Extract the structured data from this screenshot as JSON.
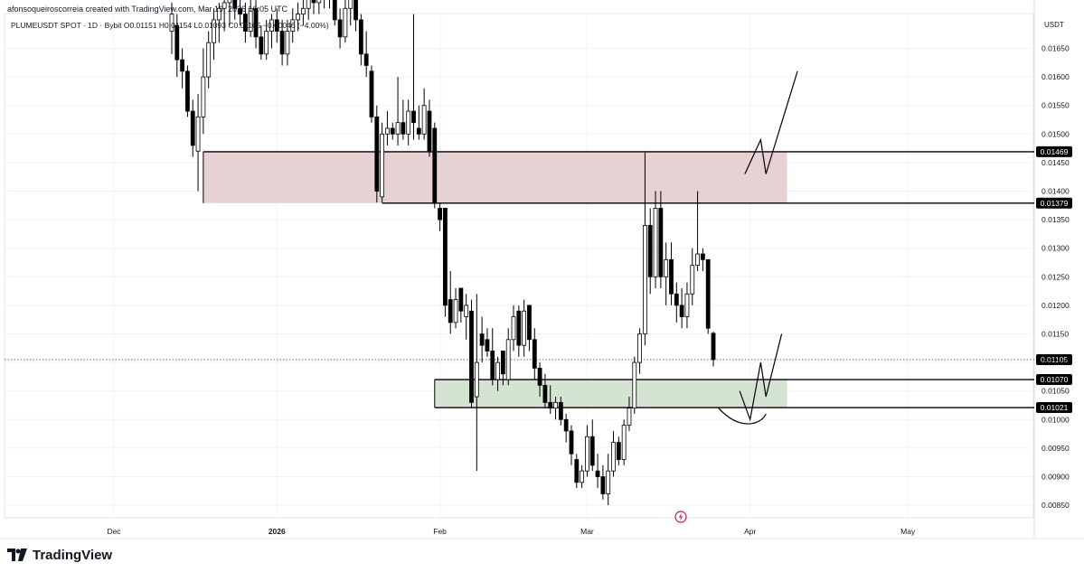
{
  "header": {
    "credit": "afonsoqueiroscorreia created with TradingView.com, Mar 19, 2026 16:05 UTC",
    "symbol_line": "PLUMEUSDT SPOT · 1D · Bybit  O0.01151  H0.01154  L0.01093  C0.01105  −0.00046 (−4.00%)",
    "currency": "USDT"
  },
  "brand": {
    "name": "TradingView",
    "logo_icon": "tradingview-logo-icon"
  },
  "colors": {
    "bull_body": "#ffffff",
    "bear_body": "#000000",
    "candle_outline": "#000000",
    "resistance_zone": "#e6d1d3",
    "support_zone": "#d4e3d2",
    "price_label_bg": "#000000",
    "grid": "#f0f3fa"
  },
  "chart_data": {
    "type": "candlestick",
    "title": "PLUMEUSDT SPOT · 1D · Bybit",
    "ylabel": "USDT",
    "ylim": [
      0.0082,
      0.017
    ],
    "y_ticks": [
      "0.01650",
      "0.01600",
      "0.01550",
      "0.01500",
      "0.01450",
      "0.01400",
      "0.01350",
      "0.01300",
      "0.01250",
      "0.01200",
      "0.01150",
      "0.01100",
      "0.01050",
      "0.01000",
      "0.00950",
      "0.00900",
      "0.00850"
    ],
    "x_ticks": [
      {
        "label": "Dec",
        "bold": false,
        "date": "2025-12-01"
      },
      {
        "label": "2026",
        "bold": true,
        "date": "2026-01-01"
      },
      {
        "label": "Feb",
        "bold": false,
        "date": "2026-02-01"
      },
      {
        "label": "Mar",
        "bold": false,
        "date": "2026-03-01"
      },
      {
        "label": "Apr",
        "bold": false,
        "date": "2026-04-01"
      },
      {
        "label": "May",
        "bold": false,
        "date": "2026-05-01"
      }
    ],
    "last_price": {
      "value": 0.01105,
      "label": "0.01105"
    },
    "levels": [
      {
        "value": 0.01469,
        "label": "0.01469"
      },
      {
        "value": 0.01379,
        "label": "0.01379"
      },
      {
        "value": 0.0107,
        "label": "0.01070"
      },
      {
        "value": 0.01021,
        "label": "0.01021"
      }
    ],
    "zones": [
      {
        "name": "resistance",
        "from_date": "2025-12-18",
        "to_date": "2026-04-08",
        "low": 0.01379,
        "high": 0.01469,
        "color": "#e6d1d3"
      },
      {
        "name": "support",
        "from_date": "2026-01-31",
        "to_date": "2026-04-08",
        "low": 0.01021,
        "high": 0.0107,
        "color": "#d4e3d2"
      }
    ],
    "candles": [
      {
        "date": "2025-12-12",
        "o": 0.0168,
        "h": 0.0173,
        "l": 0.0164,
        "c": 0.0171
      },
      {
        "date": "2025-12-13",
        "o": 0.0169,
        "h": 0.0171,
        "l": 0.016,
        "c": 0.0163
      },
      {
        "date": "2025-12-14",
        "o": 0.0163,
        "h": 0.0165,
        "l": 0.0158,
        "c": 0.0161
      },
      {
        "date": "2025-12-15",
        "o": 0.0161,
        "h": 0.0162,
        "l": 0.0153,
        "c": 0.0154
      },
      {
        "date": "2025-12-16",
        "o": 0.0154,
        "h": 0.0156,
        "l": 0.0146,
        "c": 0.0148
      },
      {
        "date": "2025-12-17",
        "o": 0.0147,
        "h": 0.0157,
        "l": 0.014,
        "c": 0.0153
      },
      {
        "date": "2025-12-18",
        "o": 0.0153,
        "h": 0.0165,
        "l": 0.015,
        "c": 0.016
      },
      {
        "date": "2025-12-19",
        "o": 0.016,
        "h": 0.0168,
        "l": 0.0158,
        "c": 0.0166
      },
      {
        "date": "2025-12-20",
        "o": 0.0166,
        "h": 0.0172,
        "l": 0.0163,
        "c": 0.017
      },
      {
        "date": "2025-12-21",
        "o": 0.017,
        "h": 0.0173,
        "l": 0.0166,
        "c": 0.0172
      },
      {
        "date": "2025-12-22",
        "o": 0.0172,
        "h": 0.0175,
        "l": 0.0168,
        "c": 0.0173
      },
      {
        "date": "2025-12-23",
        "o": 0.0173,
        "h": 0.0176,
        "l": 0.0169,
        "c": 0.0174
      },
      {
        "date": "2025-12-24",
        "o": 0.0174,
        "h": 0.0175,
        "l": 0.017,
        "c": 0.0172
      },
      {
        "date": "2025-12-25",
        "o": 0.0172,
        "h": 0.0174,
        "l": 0.0169,
        "c": 0.0171
      },
      {
        "date": "2025-12-26",
        "o": 0.0171,
        "h": 0.0173,
        "l": 0.0166,
        "c": 0.0168
      },
      {
        "date": "2025-12-27",
        "o": 0.0168,
        "h": 0.0174,
        "l": 0.0167,
        "c": 0.0172
      },
      {
        "date": "2025-12-28",
        "o": 0.0172,
        "h": 0.0174,
        "l": 0.0165,
        "c": 0.0167
      },
      {
        "date": "2025-12-29",
        "o": 0.0167,
        "h": 0.0169,
        "l": 0.0163,
        "c": 0.0164
      },
      {
        "date": "2025-12-30",
        "o": 0.0164,
        "h": 0.017,
        "l": 0.0163,
        "c": 0.0168
      },
      {
        "date": "2025-12-31",
        "o": 0.0168,
        "h": 0.0171,
        "l": 0.0165,
        "c": 0.017
      },
      {
        "date": "2026-01-01",
        "o": 0.017,
        "h": 0.0172,
        "l": 0.0166,
        "c": 0.0168
      },
      {
        "date": "2026-01-02",
        "o": 0.0168,
        "h": 0.017,
        "l": 0.0162,
        "c": 0.0164
      },
      {
        "date": "2026-01-03",
        "o": 0.0164,
        "h": 0.017,
        "l": 0.0162,
        "c": 0.0168
      },
      {
        "date": "2026-01-04",
        "o": 0.0168,
        "h": 0.0172,
        "l": 0.0166,
        "c": 0.017
      },
      {
        "date": "2026-01-05",
        "o": 0.017,
        "h": 0.0173,
        "l": 0.0168,
        "c": 0.0171
      },
      {
        "date": "2026-01-06",
        "o": 0.0171,
        "h": 0.0174,
        "l": 0.0169,
        "c": 0.0172
      },
      {
        "date": "2026-01-07",
        "o": 0.0172,
        "h": 0.0175,
        "l": 0.017,
        "c": 0.0174
      },
      {
        "date": "2026-01-08",
        "o": 0.0174,
        "h": 0.0176,
        "l": 0.0171,
        "c": 0.0173
      },
      {
        "date": "2026-01-09",
        "o": 0.0173,
        "h": 0.0176,
        "l": 0.0171,
        "c": 0.0175
      },
      {
        "date": "2026-01-10",
        "o": 0.0175,
        "h": 0.0177,
        "l": 0.0172,
        "c": 0.0176
      },
      {
        "date": "2026-01-11",
        "o": 0.0176,
        "h": 0.0177,
        "l": 0.0172,
        "c": 0.0174
      },
      {
        "date": "2026-01-12",
        "o": 0.0174,
        "h": 0.0176,
        "l": 0.0169,
        "c": 0.017
      },
      {
        "date": "2026-01-13",
        "o": 0.017,
        "h": 0.0172,
        "l": 0.0165,
        "c": 0.0167
      },
      {
        "date": "2026-01-14",
        "o": 0.0167,
        "h": 0.0174,
        "l": 0.0166,
        "c": 0.0172
      },
      {
        "date": "2026-01-15",
        "o": 0.0172,
        "h": 0.0176,
        "l": 0.0169,
        "c": 0.0174
      },
      {
        "date": "2026-01-16",
        "o": 0.0174,
        "h": 0.0175,
        "l": 0.0168,
        "c": 0.017
      },
      {
        "date": "2026-01-17",
        "o": 0.017,
        "h": 0.0171,
        "l": 0.0162,
        "c": 0.0164
      },
      {
        "date": "2026-01-18",
        "o": 0.0164,
        "h": 0.0168,
        "l": 0.016,
        "c": 0.0162
      },
      {
        "date": "2026-01-19",
        "o": 0.0161,
        "h": 0.0162,
        "l": 0.0152,
        "c": 0.0153
      },
      {
        "date": "2026-01-20",
        "o": 0.0153,
        "h": 0.0155,
        "l": 0.0138,
        "c": 0.014
      },
      {
        "date": "2026-01-21",
        "o": 0.0139,
        "h": 0.0152,
        "l": 0.0138,
        "c": 0.015
      },
      {
        "date": "2026-01-22",
        "o": 0.015,
        "h": 0.0154,
        "l": 0.0148,
        "c": 0.0151
      },
      {
        "date": "2026-01-23",
        "o": 0.0151,
        "h": 0.0152,
        "l": 0.0149,
        "c": 0.015
      },
      {
        "date": "2026-01-24",
        "o": 0.015,
        "h": 0.016,
        "l": 0.0148,
        "c": 0.0152
      },
      {
        "date": "2026-01-25",
        "o": 0.0152,
        "h": 0.0156,
        "l": 0.0149,
        "c": 0.015
      },
      {
        "date": "2026-01-26",
        "o": 0.015,
        "h": 0.0156,
        "l": 0.0148,
        "c": 0.0154
      },
      {
        "date": "2026-01-27",
        "o": 0.0154,
        "h": 0.0171,
        "l": 0.0149,
        "c": 0.0152
      },
      {
        "date": "2026-01-28",
        "o": 0.0151,
        "h": 0.0155,
        "l": 0.0149,
        "c": 0.015
      },
      {
        "date": "2026-01-29",
        "o": 0.015,
        "h": 0.0158,
        "l": 0.0149,
        "c": 0.0155
      },
      {
        "date": "2026-01-30",
        "o": 0.0154,
        "h": 0.0156,
        "l": 0.0146,
        "c": 0.0147
      },
      {
        "date": "2026-01-31",
        "o": 0.0151,
        "h": 0.0152,
        "l": 0.0137,
        "c": 0.0138
      },
      {
        "date": "2026-02-01",
        "o": 0.0137,
        "h": 0.0138,
        "l": 0.0133,
        "c": 0.0135
      },
      {
        "date": "2026-02-02",
        "o": 0.0137,
        "h": 0.0137,
        "l": 0.0118,
        "c": 0.012
      },
      {
        "date": "2026-02-03",
        "o": 0.0121,
        "h": 0.0126,
        "l": 0.0115,
        "c": 0.0117
      },
      {
        "date": "2026-02-04",
        "o": 0.0117,
        "h": 0.0123,
        "l": 0.0116,
        "c": 0.0121
      },
      {
        "date": "2026-02-05",
        "o": 0.0123,
        "h": 0.0123,
        "l": 0.0117,
        "c": 0.0119
      },
      {
        "date": "2026-02-06",
        "o": 0.0118,
        "h": 0.0122,
        "l": 0.0114,
        "c": 0.012
      },
      {
        "date": "2026-02-07",
        "o": 0.0119,
        "h": 0.0121,
        "l": 0.0102,
        "c": 0.0103
      },
      {
        "date": "2026-02-08",
        "o": 0.0104,
        "h": 0.0122,
        "l": 0.0091,
        "c": 0.011
      },
      {
        "date": "2026-02-09",
        "o": 0.0115,
        "h": 0.0118,
        "l": 0.011,
        "c": 0.0113
      },
      {
        "date": "2026-02-10",
        "o": 0.0114,
        "h": 0.0116,
        "l": 0.0111,
        "c": 0.0112
      },
      {
        "date": "2026-02-11",
        "o": 0.0112,
        "h": 0.0116,
        "l": 0.0106,
        "c": 0.0107
      },
      {
        "date": "2026-02-12",
        "o": 0.0107,
        "h": 0.0111,
        "l": 0.0105,
        "c": 0.011
      },
      {
        "date": "2026-02-13",
        "o": 0.0112,
        "h": 0.0112,
        "l": 0.0106,
        "c": 0.0108
      },
      {
        "date": "2026-02-14",
        "o": 0.0107,
        "h": 0.0116,
        "l": 0.0106,
        "c": 0.0114
      },
      {
        "date": "2026-02-15",
        "o": 0.0114,
        "h": 0.012,
        "l": 0.0112,
        "c": 0.0118
      },
      {
        "date": "2026-02-16",
        "o": 0.0119,
        "h": 0.012,
        "l": 0.0111,
        "c": 0.0113
      },
      {
        "date": "2026-02-17",
        "o": 0.0113,
        "h": 0.0121,
        "l": 0.0111,
        "c": 0.0119
      },
      {
        "date": "2026-02-18",
        "o": 0.012,
        "h": 0.012,
        "l": 0.0112,
        "c": 0.0114
      },
      {
        "date": "2026-02-19",
        "o": 0.0114,
        "h": 0.0116,
        "l": 0.0107,
        "c": 0.0109
      },
      {
        "date": "2026-02-20",
        "o": 0.0109,
        "h": 0.011,
        "l": 0.0104,
        "c": 0.0106
      },
      {
        "date": "2026-02-21",
        "o": 0.0106,
        "h": 0.0108,
        "l": 0.0102,
        "c": 0.0103
      },
      {
        "date": "2026-02-22",
        "o": 0.0103,
        "h": 0.0106,
        "l": 0.0101,
        "c": 0.0102
      },
      {
        "date": "2026-02-23",
        "o": 0.0102,
        "h": 0.0104,
        "l": 0.01,
        "c": 0.0103
      },
      {
        "date": "2026-02-24",
        "o": 0.0103,
        "h": 0.0104,
        "l": 0.0099,
        "c": 0.01
      },
      {
        "date": "2026-02-25",
        "o": 0.01,
        "h": 0.0101,
        "l": 0.0096,
        "c": 0.0098
      },
      {
        "date": "2026-02-26",
        "o": 0.0098,
        "h": 0.0099,
        "l": 0.0092,
        "c": 0.0094
      },
      {
        "date": "2026-02-27",
        "o": 0.0093,
        "h": 0.0094,
        "l": 0.0088,
        "c": 0.0089
      },
      {
        "date": "2026-02-28",
        "o": 0.0089,
        "h": 0.0092,
        "l": 0.0088,
        "c": 0.0091
      },
      {
        "date": "2026-03-01",
        "o": 0.0091,
        "h": 0.0099,
        "l": 0.009,
        "c": 0.0097
      },
      {
        "date": "2026-03-02",
        "o": 0.0097,
        "h": 0.01,
        "l": 0.0091,
        "c": 0.0092
      },
      {
        "date": "2026-03-03",
        "o": 0.0091,
        "h": 0.0094,
        "l": 0.0088,
        "c": 0.009
      },
      {
        "date": "2026-03-04",
        "o": 0.009,
        "h": 0.0092,
        "l": 0.0086,
        "c": 0.0087
      },
      {
        "date": "2026-03-05",
        "o": 0.0087,
        "h": 0.0094,
        "l": 0.0085,
        "c": 0.0091
      },
      {
        "date": "2026-03-06",
        "o": 0.0091,
        "h": 0.0098,
        "l": 0.009,
        "c": 0.0096
      },
      {
        "date": "2026-03-07",
        "o": 0.0096,
        "h": 0.0097,
        "l": 0.0092,
        "c": 0.0093
      },
      {
        "date": "2026-03-08",
        "o": 0.0093,
        "h": 0.01,
        "l": 0.0092,
        "c": 0.0099
      },
      {
        "date": "2026-03-09",
        "o": 0.0099,
        "h": 0.0104,
        "l": 0.0098,
        "c": 0.0102
      },
      {
        "date": "2026-03-10",
        "o": 0.0102,
        "h": 0.0111,
        "l": 0.0101,
        "c": 0.011
      },
      {
        "date": "2026-03-11",
        "o": 0.011,
        "h": 0.0116,
        "l": 0.0108,
        "c": 0.0115
      },
      {
        "date": "2026-03-12",
        "o": 0.0115,
        "h": 0.0147,
        "l": 0.0113,
        "c": 0.0134
      },
      {
        "date": "2026-03-13",
        "o": 0.0134,
        "h": 0.0137,
        "l": 0.0122,
        "c": 0.0125
      },
      {
        "date": "2026-03-14",
        "o": 0.0125,
        "h": 0.014,
        "l": 0.0123,
        "c": 0.0137
      },
      {
        "date": "2026-03-15",
        "o": 0.0137,
        "h": 0.014,
        "l": 0.0123,
        "c": 0.0125
      },
      {
        "date": "2026-03-16",
        "o": 0.0125,
        "h": 0.0131,
        "l": 0.012,
        "c": 0.0128
      },
      {
        "date": "2026-03-17",
        "o": 0.0128,
        "h": 0.0131,
        "l": 0.012,
        "c": 0.0122
      },
      {
        "date": "2026-03-18",
        "o": 0.0122,
        "h": 0.0124,
        "l": 0.0117,
        "c": 0.012
      },
      {
        "date": "2026-03-19",
        "o": 0.012,
        "h": 0.0123,
        "l": 0.0116,
        "c": 0.0118
      },
      {
        "date": "2026-03-20",
        "o": 0.0118,
        "h": 0.0124,
        "l": 0.0116,
        "c": 0.0122
      },
      {
        "date": "2026-03-21",
        "o": 0.0122,
        "h": 0.013,
        "l": 0.012,
        "c": 0.0127
      },
      {
        "date": "2026-03-22",
        "o": 0.0127,
        "h": 0.014,
        "l": 0.0126,
        "c": 0.0129
      },
      {
        "date": "2026-03-23",
        "o": 0.0129,
        "h": 0.013,
        "l": 0.0126,
        "c": 0.0128
      },
      {
        "date": "2026-03-24",
        "o": 0.0128,
        "h": 0.0128,
        "l": 0.0115,
        "c": 0.0116
      },
      {
        "date": "2026-03-25",
        "o": 0.01151,
        "h": 0.01154,
        "l": 0.01093,
        "c": 0.01105
      }
    ],
    "annotations": [
      {
        "name": "projection-high",
        "points": [
          {
            "date": "2026-03-31",
            "value": 0.0143
          },
          {
            "date": "2026-04-03",
            "value": 0.0149
          },
          {
            "date": "2026-04-04",
            "value": 0.0143
          },
          {
            "date": "2026-04-10",
            "value": 0.0161
          }
        ]
      },
      {
        "name": "projection-low",
        "points": [
          {
            "date": "2026-03-30",
            "value": 0.0105
          },
          {
            "date": "2026-04-01",
            "value": 0.01
          },
          {
            "date": "2026-04-03",
            "value": 0.011
          },
          {
            "date": "2026-04-04",
            "value": 0.0104
          },
          {
            "date": "2026-04-07",
            "value": 0.0115
          }
        ]
      },
      {
        "name": "dip-curve",
        "points": [
          {
            "date": "2026-03-26",
            "value": 0.0102
          },
          {
            "date": "2026-03-30",
            "value": 0.0098
          },
          {
            "date": "2026-04-03",
            "value": 0.0099
          },
          {
            "date": "2026-04-04",
            "value": 0.0101
          }
        ]
      }
    ]
  }
}
